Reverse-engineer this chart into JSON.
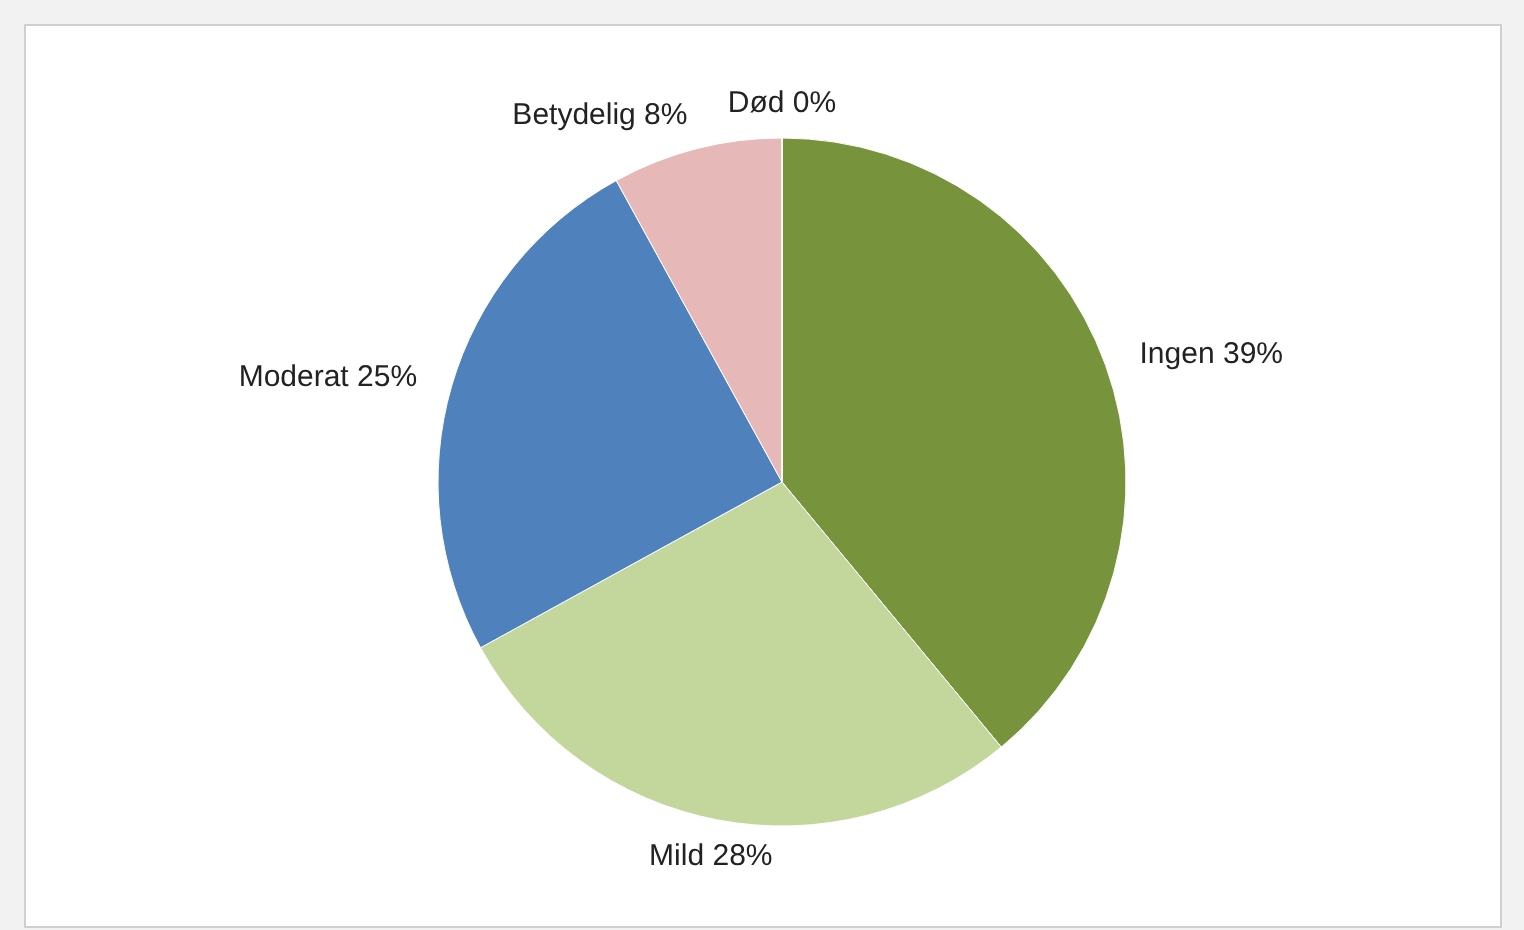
{
  "chart_data": {
    "type": "pie",
    "categories": [
      "Ingen",
      "Mild",
      "Moderat",
      "Betydelig",
      "Død"
    ],
    "values": [
      39,
      28,
      25,
      8,
      0
    ],
    "colors": [
      "#77933c",
      "#c3d69b",
      "#4f81bd",
      "#e6b9b8",
      "#8064a2"
    ],
    "value_labels": [
      "39%",
      "28%",
      "25%",
      "8%",
      "0%"
    ]
  }
}
